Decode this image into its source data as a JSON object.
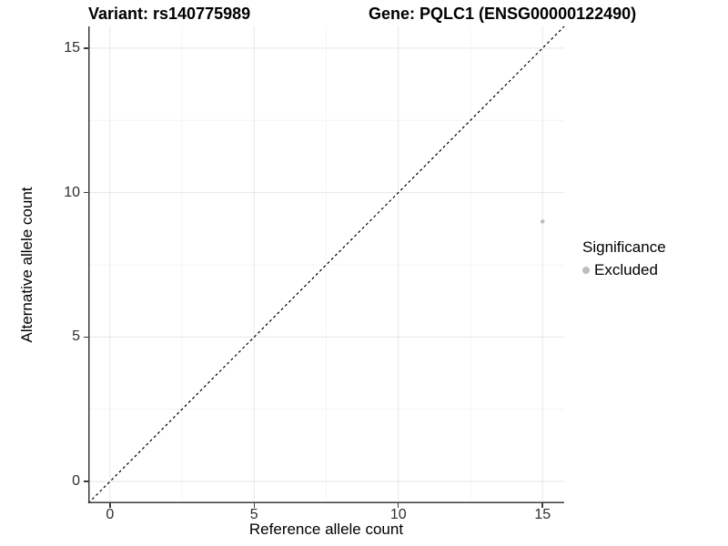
{
  "titles": {
    "variant": "Variant: rs140775989",
    "gene": "Gene: PQLC1 (ENSG00000122490)"
  },
  "axes": {
    "x": {
      "label": "Reference allele count",
      "ticks": [
        "0",
        "5",
        "10",
        "15"
      ]
    },
    "y": {
      "label": "Alternative allele count",
      "ticks": [
        "0",
        "5",
        "10",
        "15"
      ]
    }
  },
  "legend": {
    "title": "Significance",
    "items": [
      {
        "label": "Excluded",
        "color": "#bdbdbd"
      }
    ]
  },
  "chart_data": {
    "type": "scatter",
    "title": "Variant: rs140775989 — Gene: PQLC1 (ENSG00000122490)",
    "xlabel": "Reference allele count",
    "ylabel": "Alternative allele count",
    "xlim": [
      -0.75,
      15.75
    ],
    "ylim": [
      -0.75,
      15.75
    ],
    "x_ticks": [
      0,
      5,
      10,
      15
    ],
    "y_ticks": [
      0,
      5,
      10,
      15
    ],
    "x_minor": [
      2.5,
      7.5,
      12.5
    ],
    "y_minor": [
      2.5,
      7.5,
      12.5
    ],
    "grid": {
      "major_color": "#e7e7e7",
      "minor_color": "#f4f4f4"
    },
    "reference_line": {
      "slope": 1,
      "intercept": 0,
      "style": "dashed",
      "color": "#000000"
    },
    "legend_position": "right",
    "series": [
      {
        "name": "Excluded",
        "color": "#bdbdbd",
        "points": [
          {
            "x": 15,
            "y": 9
          }
        ]
      }
    ]
  }
}
